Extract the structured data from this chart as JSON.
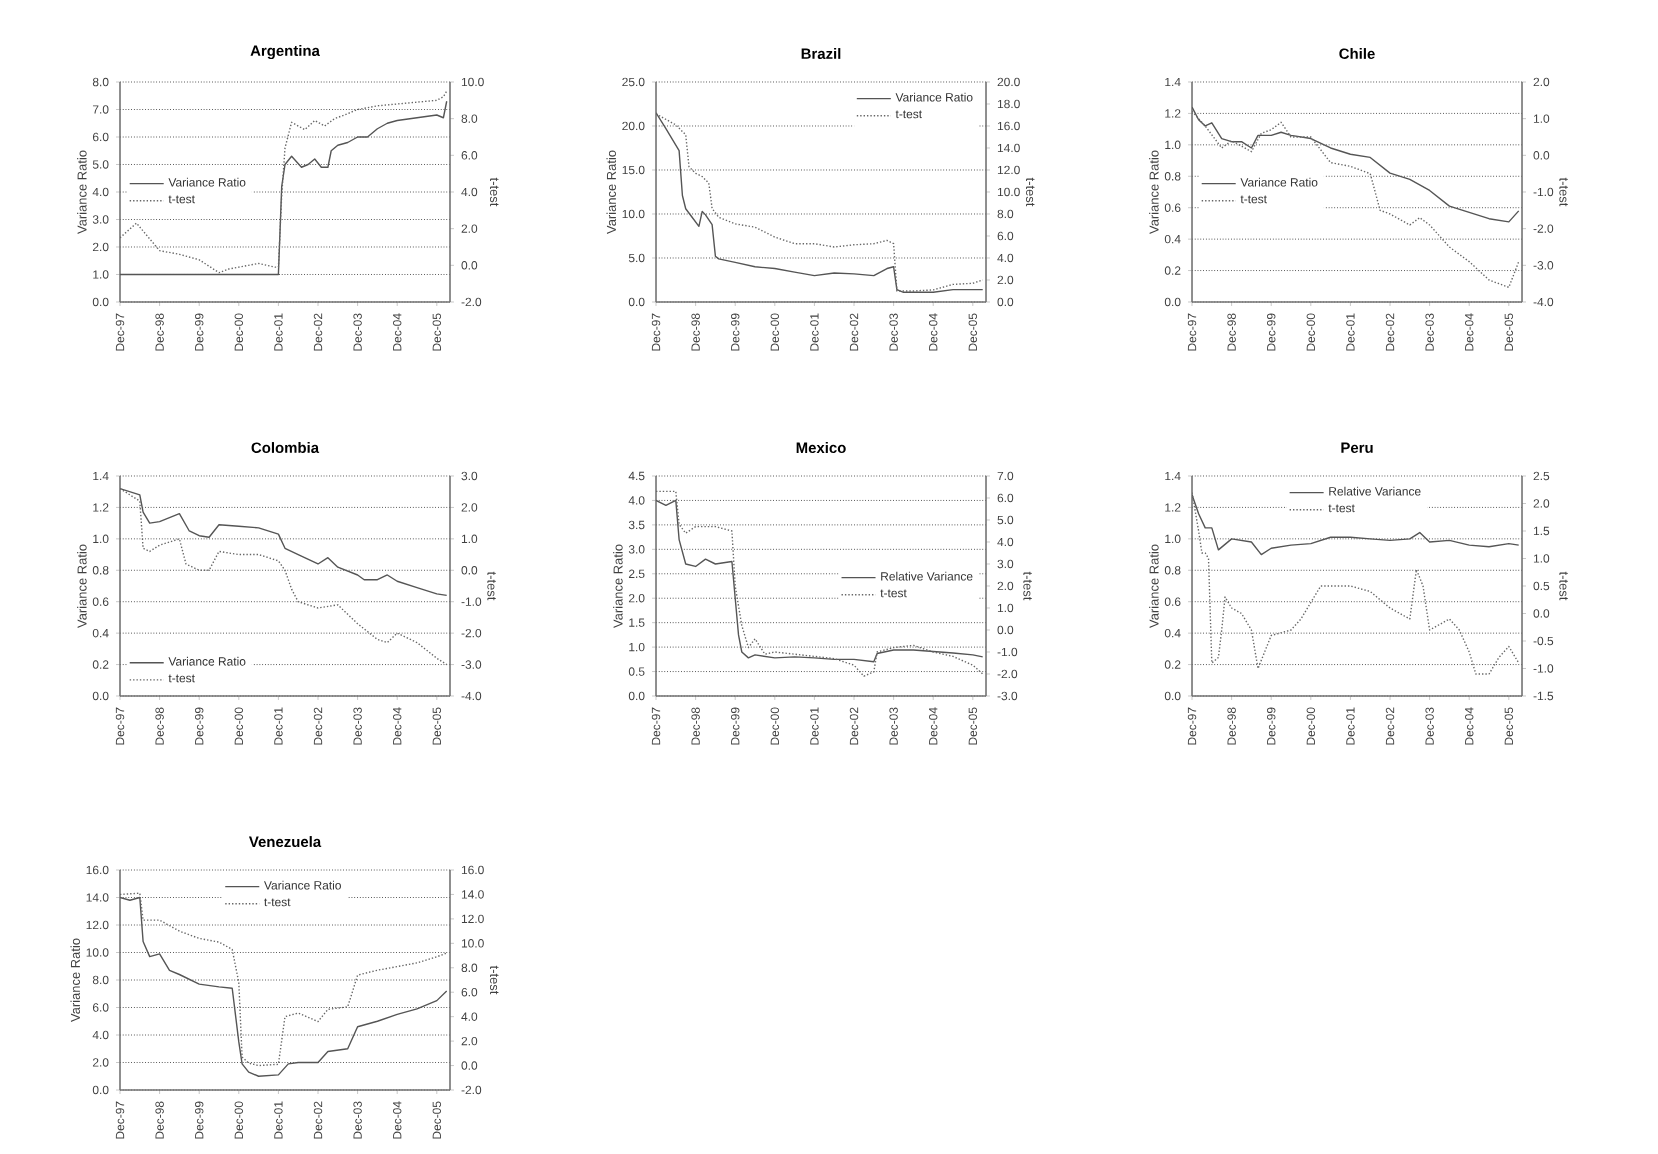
{
  "chart_data": [
    {
      "type": "line",
      "title": "Argentina",
      "ylabel": "Variance Ratio",
      "y2label": "t-test",
      "grid": "y",
      "legend": "left",
      "xlim": [
        "1997-12",
        "2006-04"
      ],
      "xticks": [
        {
          "value": "1997-12",
          "label": "Dec-97"
        },
        {
          "value": "1998-12",
          "label": "Dec-98"
        },
        {
          "value": "1999-12",
          "label": "Dec-99"
        },
        {
          "value": "2000-12",
          "label": "Dec-00"
        },
        {
          "value": "2001-12",
          "label": "Dec-01"
        },
        {
          "value": "2002-12",
          "label": "Dec-02"
        },
        {
          "value": "2003-12",
          "label": "Dec-03"
        },
        {
          "value": "2004-12",
          "label": "Dec-04"
        },
        {
          "value": "2005-12",
          "label": "Dec-05"
        }
      ],
      "ylim": [
        0,
        8
      ],
      "yticks": [
        {
          "value": 0,
          "label": "0.0"
        },
        {
          "value": 1,
          "label": "1.0"
        },
        {
          "value": 2,
          "label": "2.0"
        },
        {
          "value": 3,
          "label": "3.0"
        },
        {
          "value": 4,
          "label": "4.0"
        },
        {
          "value": 5,
          "label": "5.0"
        },
        {
          "value": 6,
          "label": "6.0"
        },
        {
          "value": 7,
          "label": "7.0"
        },
        {
          "value": 8,
          "label": "8.0"
        }
      ],
      "y2lim": [
        -2,
        10
      ],
      "y2ticks": [
        {
          "value": -2,
          "label": "-2.0"
        },
        {
          "value": 0,
          "label": "0.0"
        },
        {
          "value": 2,
          "label": "2.0"
        },
        {
          "value": 4,
          "label": "4.0"
        },
        {
          "value": 6,
          "label": "6.0"
        },
        {
          "value": 8,
          "label": "8.0"
        },
        {
          "value": 10,
          "label": "10.0"
        }
      ],
      "series": [
        {
          "name": "Variance Ratio",
          "color": "#555555",
          "line_style": "solid",
          "x": [
            "1997-12",
            "2001-11",
            "2001-12",
            "2002-01",
            "2002-02",
            "2002-04",
            "2002-07",
            "2002-09",
            "2002-11",
            "2003-01",
            "2003-03",
            "2003-04",
            "2003-06",
            "2003-09",
            "2003-12",
            "2004-03",
            "2004-06",
            "2004-09",
            "2004-12",
            "2005-06",
            "2005-12",
            "2006-02",
            "2006-03"
          ],
          "values": [
            1.0,
            1.0,
            1.0,
            4.2,
            5.0,
            5.3,
            4.9,
            5.0,
            5.2,
            4.9,
            4.9,
            5.5,
            5.7,
            5.8,
            6.0,
            6.0,
            6.3,
            6.5,
            6.6,
            6.7,
            6.8,
            6.7,
            7.3
          ]
        },
        {
          "name": "t-test",
          "color": "#666666",
          "line_style": "dotted",
          "axis": "y2",
          "x": [
            "1997-12",
            "1998-05",
            "1998-12",
            "1999-06",
            "1999-12",
            "2000-06",
            "2000-09",
            "2000-12",
            "2001-06",
            "2001-11",
            "2001-12",
            "2002-01",
            "2002-02",
            "2002-04",
            "2002-08",
            "2002-11",
            "2003-02",
            "2003-05",
            "2003-08",
            "2003-12",
            "2004-06",
            "2004-12",
            "2005-06",
            "2005-12",
            "2006-02",
            "2006-03"
          ],
          "values": [
            1.5,
            2.3,
            0.8,
            0.6,
            0.3,
            -0.4,
            -0.2,
            -0.1,
            0.1,
            -0.1,
            -0.1,
            3.8,
            6.4,
            7.8,
            7.4,
            7.9,
            7.6,
            8.0,
            8.2,
            8.5,
            8.7,
            8.8,
            8.9,
            9.0,
            9.2,
            9.5
          ]
        }
      ]
    },
    {
      "type": "line",
      "title": "Brazil",
      "ylabel": "Variance Ratio",
      "y2label": "t-test",
      "grid": "y",
      "legend": "top right",
      "xlim": [
        "1997-12",
        "2006-04"
      ],
      "xticks": [
        {
          "value": "1997-12",
          "label": "Dec-97"
        },
        {
          "value": "1998-12",
          "label": "Dec-98"
        },
        {
          "value": "1999-12",
          "label": "Dec-99"
        },
        {
          "value": "2000-12",
          "label": "Dec-00"
        },
        {
          "value": "2001-12",
          "label": "Dec-01"
        },
        {
          "value": "2002-12",
          "label": "Dec-02"
        },
        {
          "value": "2003-12",
          "label": "Dec-03"
        },
        {
          "value": "2004-12",
          "label": "Dec-04"
        },
        {
          "value": "2005-12",
          "label": "Dec-05"
        }
      ],
      "ylim": [
        0,
        25
      ],
      "yticks": [
        {
          "value": 0,
          "label": "0.0"
        },
        {
          "value": 5,
          "label": "5.0"
        },
        {
          "value": 10,
          "label": "10.0"
        },
        {
          "value": 15,
          "label": "15.0"
        },
        {
          "value": 20,
          "label": "20.0"
        },
        {
          "value": 25,
          "label": "25.0"
        }
      ],
      "y2lim": [
        0,
        20
      ],
      "y2ticks": [
        {
          "value": 0,
          "label": "0.0"
        },
        {
          "value": 2,
          "label": "2.0"
        },
        {
          "value": 4,
          "label": "4.0"
        },
        {
          "value": 6,
          "label": "6.0"
        },
        {
          "value": 8,
          "label": "8.0"
        },
        {
          "value": 10,
          "label": "10.0"
        },
        {
          "value": 12,
          "label": "12.0"
        },
        {
          "value": 14,
          "label": "14.0"
        },
        {
          "value": 16,
          "label": "16.0"
        },
        {
          "value": 18,
          "label": "18.0"
        },
        {
          "value": 20,
          "label": "20.0"
        }
      ],
      "series": [
        {
          "name": "Variance Ratio",
          "color": "#555555",
          "line_style": "solid",
          "x": [
            "1997-12",
            "1998-03",
            "1998-07",
            "1998-08",
            "1998-09",
            "1998-11",
            "1999-01",
            "1999-02",
            "1999-03",
            "1999-05",
            "1999-06",
            "1999-07",
            "1999-12",
            "2000-06",
            "2000-12",
            "2001-06",
            "2001-12",
            "2002-06",
            "2002-12",
            "2003-06",
            "2003-10",
            "2003-12",
            "2004-01",
            "2004-03",
            "2004-12",
            "2005-06",
            "2006-03"
          ],
          "values": [
            21.5,
            19.7,
            17.2,
            12.1,
            10.6,
            9.6,
            8.6,
            10.3,
            9.9,
            8.8,
            5.2,
            4.9,
            4.5,
            4.0,
            3.8,
            3.4,
            3.0,
            3.3,
            3.2,
            3.0,
            3.8,
            4.0,
            1.4,
            1.1,
            1.1,
            1.4,
            1.4
          ]
        },
        {
          "name": "t-test",
          "color": "#666666",
          "line_style": "dotted",
          "axis": "y2",
          "x": [
            "1997-12",
            "1998-06",
            "1998-09",
            "1998-10",
            "1998-12",
            "1999-02",
            "1999-04",
            "1999-05",
            "1999-07",
            "1999-12",
            "2000-06",
            "2000-12",
            "2001-06",
            "2001-12",
            "2002-06",
            "2002-12",
            "2003-06",
            "2003-10",
            "2003-12",
            "2004-01",
            "2004-06",
            "2004-12",
            "2005-06",
            "2005-12",
            "2006-03"
          ],
          "values": [
            17.1,
            16.1,
            15.2,
            12.3,
            11.7,
            11.4,
            10.8,
            8.5,
            7.7,
            7.1,
            6.8,
            5.9,
            5.3,
            5.3,
            5.0,
            5.2,
            5.3,
            5.6,
            5.3,
            1.0,
            1.0,
            1.1,
            1.6,
            1.7,
            2.0
          ]
        }
      ]
    },
    {
      "type": "line",
      "title": "Chile",
      "ylabel": "Variance Ratio",
      "y2label": "t-test",
      "grid": "y",
      "legend": "left",
      "xlim": [
        "1997-12",
        "2006-04"
      ],
      "xticks": [
        {
          "value": "1997-12",
          "label": "Dec-97"
        },
        {
          "value": "1998-12",
          "label": "Dec-98"
        },
        {
          "value": "1999-12",
          "label": "Dec-99"
        },
        {
          "value": "2000-12",
          "label": "Dec-00"
        },
        {
          "value": "2001-12",
          "label": "Dec-01"
        },
        {
          "value": "2002-12",
          "label": "Dec-02"
        },
        {
          "value": "2003-12",
          "label": "Dec-03"
        },
        {
          "value": "2004-12",
          "label": "Dec-04"
        },
        {
          "value": "2005-12",
          "label": "Dec-05"
        }
      ],
      "ylim": [
        0,
        1.4
      ],
      "yticks": [
        {
          "value": 0,
          "label": "0.0"
        },
        {
          "value": 0.2,
          "label": "0.2"
        },
        {
          "value": 0.4,
          "label": "0.4"
        },
        {
          "value": 0.6,
          "label": "0.6"
        },
        {
          "value": 0.8,
          "label": "0.8"
        },
        {
          "value": 1.0,
          "label": "1.0"
        },
        {
          "value": 1.2,
          "label": "1.2"
        },
        {
          "value": 1.4,
          "label": "1.4"
        }
      ],
      "y2lim": [
        -4,
        2
      ],
      "y2ticks": [
        {
          "value": -4,
          "label": "-4.0"
        },
        {
          "value": -3,
          "label": "-3.0"
        },
        {
          "value": -2,
          "label": "-2.0"
        },
        {
          "value": -1,
          "label": "-1.0"
        },
        {
          "value": 0,
          "label": "0.0"
        },
        {
          "value": 1,
          "label": "1.0"
        },
        {
          "value": 2,
          "label": "2.0"
        }
      ],
      "series": [
        {
          "name": "Variance Ratio",
          "color": "#555555",
          "line_style": "solid",
          "x": [
            "1997-12",
            "1998-02",
            "1998-04",
            "1998-06",
            "1998-09",
            "1998-12",
            "1999-03",
            "1999-06",
            "1999-08",
            "1999-12",
            "2000-03",
            "2000-06",
            "2000-12",
            "2001-06",
            "2001-12",
            "2002-06",
            "2002-12",
            "2003-06",
            "2003-12",
            "2004-06",
            "2004-12",
            "2005-06",
            "2005-12",
            "2006-03"
          ],
          "values": [
            1.24,
            1.16,
            1.12,
            1.14,
            1.04,
            1.02,
            1.02,
            0.98,
            1.06,
            1.06,
            1.08,
            1.06,
            1.04,
            0.98,
            0.94,
            0.92,
            0.82,
            0.78,
            0.71,
            0.61,
            0.57,
            0.53,
            0.51,
            0.58
          ]
        },
        {
          "name": "t-test",
          "color": "#666666",
          "line_style": "dotted",
          "axis": "y2",
          "x": [
            "1997-12",
            "1998-04",
            "1998-09",
            "1998-12",
            "1999-06",
            "1999-09",
            "1999-12",
            "2000-03",
            "2000-06",
            "2000-12",
            "2001-06",
            "2001-12",
            "2002-06",
            "2002-09",
            "2002-12",
            "2003-06",
            "2003-09",
            "2003-12",
            "2004-06",
            "2004-12",
            "2005-06",
            "2005-12",
            "2006-03"
          ],
          "values": [
            1.2,
            0.8,
            0.2,
            0.4,
            0.1,
            0.6,
            0.7,
            0.9,
            0.5,
            0.5,
            -0.2,
            -0.3,
            -0.5,
            -1.5,
            -1.6,
            -1.9,
            -1.7,
            -1.9,
            -2.5,
            -2.9,
            -3.4,
            -3.6,
            -2.9
          ]
        }
      ]
    },
    {
      "type": "line",
      "title": "Colombia",
      "ylabel": "Variance Ratio",
      "y2label": "t-test",
      "grid": "y",
      "legend": "bottom left",
      "xlim": [
        "1997-12",
        "2006-04"
      ],
      "xticks": [
        {
          "value": "1997-12",
          "label": "Dec-97"
        },
        {
          "value": "1998-12",
          "label": "Dec-98"
        },
        {
          "value": "1999-12",
          "label": "Dec-99"
        },
        {
          "value": "2000-12",
          "label": "Dec-00"
        },
        {
          "value": "2001-12",
          "label": "Dec-01"
        },
        {
          "value": "2002-12",
          "label": "Dec-02"
        },
        {
          "value": "2003-12",
          "label": "Dec-03"
        },
        {
          "value": "2004-12",
          "label": "Dec-04"
        },
        {
          "value": "2005-12",
          "label": "Dec-05"
        }
      ],
      "ylim": [
        0,
        1.4
      ],
      "yticks": [
        {
          "value": 0,
          "label": "0.0"
        },
        {
          "value": 0.2,
          "label": "0.2"
        },
        {
          "value": 0.4,
          "label": "0.4"
        },
        {
          "value": 0.6,
          "label": "0.6"
        },
        {
          "value": 0.8,
          "label": "0.8"
        },
        {
          "value": 1.0,
          "label": "1.0"
        },
        {
          "value": 1.2,
          "label": "1.2"
        },
        {
          "value": 1.4,
          "label": "1.4"
        }
      ],
      "y2lim": [
        -4,
        3
      ],
      "y2ticks": [
        {
          "value": -4,
          "label": "-4.0"
        },
        {
          "value": -3,
          "label": "-3.0"
        },
        {
          "value": -2,
          "label": "-2.0"
        },
        {
          "value": -1,
          "label": "-1.0"
        },
        {
          "value": 0,
          "label": "0.0"
        },
        {
          "value": 1,
          "label": "1.0"
        },
        {
          "value": 2,
          "label": "2.0"
        },
        {
          "value": 3,
          "label": "3.0"
        }
      ],
      "series": [
        {
          "name": "Variance Ratio",
          "color": "#555555",
          "line_style": "solid",
          "x": [
            "1997-12",
            "1998-03",
            "1998-06",
            "1998-07",
            "1998-09",
            "1998-12",
            "1999-06",
            "1999-09",
            "1999-12",
            "2000-03",
            "2000-06",
            "2000-12",
            "2001-06",
            "2001-12",
            "2002-02",
            "2002-06",
            "2002-12",
            "2003-03",
            "2003-06",
            "2003-12",
            "2004-02",
            "2004-06",
            "2004-09",
            "2004-12",
            "2005-06",
            "2005-12",
            "2006-03"
          ],
          "values": [
            1.32,
            1.3,
            1.28,
            1.17,
            1.1,
            1.11,
            1.16,
            1.05,
            1.02,
            1.01,
            1.09,
            1.08,
            1.07,
            1.03,
            0.94,
            0.9,
            0.84,
            0.88,
            0.82,
            0.77,
            0.74,
            0.74,
            0.77,
            0.73,
            0.69,
            0.65,
            0.64
          ]
        },
        {
          "name": "t-test",
          "color": "#666666",
          "line_style": "dotted",
          "axis": "y2",
          "x": [
            "1997-12",
            "1998-06",
            "1998-07",
            "1998-09",
            "1998-12",
            "1999-06",
            "1999-08",
            "1999-12",
            "2000-03",
            "2000-06",
            "2000-12",
            "2001-06",
            "2001-12",
            "2002-02",
            "2002-04",
            "2002-06",
            "2002-12",
            "2003-06",
            "2003-09",
            "2003-12",
            "2004-06",
            "2004-09",
            "2004-12",
            "2005-06",
            "2005-12",
            "2006-03"
          ],
          "values": [
            2.6,
            2.2,
            0.7,
            0.6,
            0.8,
            1.0,
            0.2,
            0.0,
            0.0,
            0.6,
            0.5,
            0.5,
            0.3,
            0.0,
            -0.6,
            -1.0,
            -1.2,
            -1.1,
            -1.4,
            -1.7,
            -2.2,
            -2.3,
            -2.0,
            -2.3,
            -2.8,
            -3.0
          ]
        }
      ]
    },
    {
      "type": "line",
      "title": "Mexico",
      "ylabel": "Variance Ratio",
      "y2label": "t-test",
      "grid": "y",
      "legend": "right",
      "xlim": [
        "1997-12",
        "2006-04"
      ],
      "xticks": [
        {
          "value": "1997-12",
          "label": "Dec-97"
        },
        {
          "value": "1998-12",
          "label": "Dec-98"
        },
        {
          "value": "1999-12",
          "label": "Dec-99"
        },
        {
          "value": "2000-12",
          "label": "Dec-00"
        },
        {
          "value": "2001-12",
          "label": "Dec-01"
        },
        {
          "value": "2002-12",
          "label": "Dec-02"
        },
        {
          "value": "2003-12",
          "label": "Dec-03"
        },
        {
          "value": "2004-12",
          "label": "Dec-04"
        },
        {
          "value": "2005-12",
          "label": "Dec-05"
        }
      ],
      "ylim": [
        0,
        4.5
      ],
      "yticks": [
        {
          "value": 0,
          "label": "0.0"
        },
        {
          "value": 0.5,
          "label": "0.5"
        },
        {
          "value": 1.0,
          "label": "1.0"
        },
        {
          "value": 1.5,
          "label": "1.5"
        },
        {
          "value": 2.0,
          "label": "2.0"
        },
        {
          "value": 2.5,
          "label": "2.5"
        },
        {
          "value": 3.0,
          "label": "3.0"
        },
        {
          "value": 3.5,
          "label": "3.5"
        },
        {
          "value": 4.0,
          "label": "4.0"
        },
        {
          "value": 4.5,
          "label": "4.5"
        }
      ],
      "y2lim": [
        -3,
        7
      ],
      "y2ticks": [
        {
          "value": -3,
          "label": "-3.0"
        },
        {
          "value": -2,
          "label": "-2.0"
        },
        {
          "value": -1,
          "label": "-1.0"
        },
        {
          "value": 0,
          "label": "0.0"
        },
        {
          "value": 1,
          "label": "1.0"
        },
        {
          "value": 2,
          "label": "2.0"
        },
        {
          "value": 3,
          "label": "3.0"
        },
        {
          "value": 4,
          "label": "4.0"
        },
        {
          "value": 5,
          "label": "5.0"
        },
        {
          "value": 6,
          "label": "6.0"
        },
        {
          "value": 7,
          "label": "7.0"
        }
      ],
      "series": [
        {
          "name": "Relative Variance",
          "color": "#555555",
          "line_style": "solid",
          "x": [
            "1997-12",
            "1998-03",
            "1998-06",
            "1998-07",
            "1998-09",
            "1998-12",
            "1999-03",
            "1999-06",
            "1999-11",
            "1999-12",
            "2000-01",
            "2000-02",
            "2000-04",
            "2000-06",
            "2000-12",
            "2001-06",
            "2001-12",
            "2002-06",
            "2002-12",
            "2003-06",
            "2003-07",
            "2003-12",
            "2004-06",
            "2004-12",
            "2005-06",
            "2005-12",
            "2006-03"
          ],
          "values": [
            4.0,
            3.9,
            4.0,
            3.2,
            2.7,
            2.65,
            2.8,
            2.7,
            2.75,
            2.0,
            1.25,
            0.9,
            0.78,
            0.84,
            0.78,
            0.8,
            0.78,
            0.75,
            0.75,
            0.7,
            0.87,
            0.94,
            0.94,
            0.91,
            0.88,
            0.84,
            0.8
          ]
        },
        {
          "name": "t-test",
          "color": "#666666",
          "line_style": "dotted",
          "axis": "y2",
          "x": [
            "1997-12",
            "1998-06",
            "1998-07",
            "1998-09",
            "1998-12",
            "1999-06",
            "1999-11",
            "1999-12",
            "2000-02",
            "2000-04",
            "2000-06",
            "2000-09",
            "2000-12",
            "2001-06",
            "2001-12",
            "2002-06",
            "2002-12",
            "2003-03",
            "2003-06",
            "2003-07",
            "2003-12",
            "2004-06",
            "2004-12",
            "2005-06",
            "2005-12",
            "2006-03"
          ],
          "values": [
            6.3,
            6.3,
            4.8,
            4.4,
            4.7,
            4.7,
            4.5,
            2.0,
            0.2,
            -0.8,
            -0.4,
            -1.1,
            -1.0,
            -1.1,
            -1.2,
            -1.3,
            -1.6,
            -2.1,
            -1.9,
            -1.0,
            -0.8,
            -0.7,
            -1.0,
            -1.2,
            -1.6,
            -2.0
          ]
        }
      ]
    },
    {
      "type": "line",
      "title": "Peru",
      "ylabel": "Variance Ratio",
      "y2label": "t-test",
      "grid": "y",
      "legend": "top",
      "xlim": [
        "1997-12",
        "2006-04"
      ],
      "xticks": [
        {
          "value": "1997-12",
          "label": "Dec-97"
        },
        {
          "value": "1998-12",
          "label": "Dec-98"
        },
        {
          "value": "1999-12",
          "label": "Dec-99"
        },
        {
          "value": "2000-12",
          "label": "Dec-00"
        },
        {
          "value": "2001-12",
          "label": "Dec-01"
        },
        {
          "value": "2002-12",
          "label": "Dec-02"
        },
        {
          "value": "2003-12",
          "label": "Dec-03"
        },
        {
          "value": "2004-12",
          "label": "Dec-04"
        },
        {
          "value": "2005-12",
          "label": "Dec-05"
        }
      ],
      "ylim": [
        0,
        1.4
      ],
      "yticks": [
        {
          "value": 0,
          "label": "0.0"
        },
        {
          "value": 0.2,
          "label": "0.2"
        },
        {
          "value": 0.4,
          "label": "0.4"
        },
        {
          "value": 0.6,
          "label": "0.6"
        },
        {
          "value": 0.8,
          "label": "0.8"
        },
        {
          "value": 1.0,
          "label": "1.0"
        },
        {
          "value": 1.2,
          "label": "1.2"
        },
        {
          "value": 1.4,
          "label": "1.4"
        }
      ],
      "y2lim": [
        -1.5,
        2.5
      ],
      "y2ticks": [
        {
          "value": -1.5,
          "label": "-1.5"
        },
        {
          "value": -1.0,
          "label": "-1.0"
        },
        {
          "value": -0.5,
          "label": "-0.5"
        },
        {
          "value": 0,
          "label": "0.0"
        },
        {
          "value": 0.5,
          "label": "0.5"
        },
        {
          "value": 1.0,
          "label": "1.0"
        },
        {
          "value": 1.5,
          "label": "1.5"
        },
        {
          "value": 2.0,
          "label": "2.0"
        },
        {
          "value": 2.5,
          "label": "2.5"
        }
      ],
      "series": [
        {
          "name": "Relative Variance",
          "color": "#555555",
          "line_style": "solid",
          "x": [
            "1997-12",
            "1998-02",
            "1998-04",
            "1998-06",
            "1998-08",
            "1998-12",
            "1999-06",
            "1999-09",
            "1999-12",
            "2000-06",
            "2000-12",
            "2001-06",
            "2001-12",
            "2002-06",
            "2002-12",
            "2003-06",
            "2003-09",
            "2003-12",
            "2004-06",
            "2004-12",
            "2005-06",
            "2005-12",
            "2006-03"
          ],
          "values": [
            1.28,
            1.16,
            1.07,
            1.07,
            0.93,
            1.0,
            0.98,
            0.9,
            0.94,
            0.96,
            0.97,
            1.01,
            1.01,
            1.0,
            0.99,
            1.0,
            1.04,
            0.98,
            0.99,
            0.96,
            0.95,
            0.97,
            0.96
          ]
        },
        {
          "name": "t-test",
          "color": "#666666",
          "line_style": "dotted",
          "axis": "y2",
          "x": [
            "1997-12",
            "1998-02",
            "1998-03",
            "1998-04",
            "1998-05",
            "1998-06",
            "1998-08",
            "1998-09",
            "1998-10",
            "1998-12",
            "1999-03",
            "1999-06",
            "1999-08",
            "1999-10",
            "1999-12",
            "2000-06",
            "2000-09",
            "2000-12",
            "2001-03",
            "2001-06",
            "2001-12",
            "2002-06",
            "2002-12",
            "2003-06",
            "2003-08",
            "2003-10",
            "2003-12",
            "2004-06",
            "2004-09",
            "2004-12",
            "2005-02",
            "2005-06",
            "2005-09",
            "2005-12",
            "2006-03"
          ],
          "values": [
            2.2,
            1.5,
            1.1,
            1.1,
            1.0,
            -0.9,
            -0.8,
            -0.3,
            0.3,
            0.1,
            0.0,
            -0.3,
            -1.0,
            -0.7,
            -0.4,
            -0.3,
            -0.1,
            0.2,
            0.5,
            0.5,
            0.5,
            0.4,
            0.1,
            -0.1,
            0.8,
            0.5,
            -0.3,
            -0.1,
            -0.3,
            -0.7,
            -1.1,
            -1.1,
            -0.8,
            -0.6,
            -0.9
          ]
        }
      ]
    },
    {
      "type": "line",
      "title": "Venezuela",
      "ylabel": "Variance Ratio",
      "y2label": "t-test",
      "grid": "y",
      "legend": "top",
      "xlim": [
        "1997-12",
        "2006-04"
      ],
      "xticks": [
        {
          "value": "1997-12",
          "label": "Dec-97"
        },
        {
          "value": "1998-12",
          "label": "Dec-98"
        },
        {
          "value": "1999-12",
          "label": "Dec-99"
        },
        {
          "value": "2000-12",
          "label": "Dec-00"
        },
        {
          "value": "2001-12",
          "label": "Dec-01"
        },
        {
          "value": "2002-12",
          "label": "Dec-02"
        },
        {
          "value": "2003-12",
          "label": "Dec-03"
        },
        {
          "value": "2004-12",
          "label": "Dec-04"
        },
        {
          "value": "2005-12",
          "label": "Dec-05"
        }
      ],
      "ylim": [
        0,
        16
      ],
      "yticks": [
        {
          "value": 0,
          "label": "0.0"
        },
        {
          "value": 2,
          "label": "2.0"
        },
        {
          "value": 4,
          "label": "4.0"
        },
        {
          "value": 6,
          "label": "6.0"
        },
        {
          "value": 8,
          "label": "8.0"
        },
        {
          "value": 10,
          "label": "10.0"
        },
        {
          "value": 12,
          "label": "12.0"
        },
        {
          "value": 14,
          "label": "14.0"
        },
        {
          "value": 16,
          "label": "16.0"
        }
      ],
      "y2lim": [
        -2,
        16
      ],
      "y2ticks": [
        {
          "value": -2,
          "label": "-2.0"
        },
        {
          "value": 0,
          "label": "0.0"
        },
        {
          "value": 2,
          "label": "2.0"
        },
        {
          "value": 4,
          "label": "4.0"
        },
        {
          "value": 6,
          "label": "6.0"
        },
        {
          "value": 8,
          "label": "8.0"
        },
        {
          "value": 10,
          "label": "10.0"
        },
        {
          "value": 12,
          "label": "12.0"
        },
        {
          "value": 14,
          "label": "14.0"
        },
        {
          "value": 16,
          "label": "16.0"
        }
      ],
      "series": [
        {
          "name": "Variance Ratio",
          "color": "#555555",
          "line_style": "solid",
          "x": [
            "1997-12",
            "1998-03",
            "1998-06",
            "1998-07",
            "1998-09",
            "1998-12",
            "1999-03",
            "1999-06",
            "1999-12",
            "2000-06",
            "2000-10",
            "2000-12",
            "2001-01",
            "2001-03",
            "2001-06",
            "2001-12",
            "2002-03",
            "2002-06",
            "2002-12",
            "2003-03",
            "2003-09",
            "2003-12",
            "2004-06",
            "2004-12",
            "2005-06",
            "2005-12",
            "2006-03"
          ],
          "values": [
            14.0,
            13.8,
            14.0,
            10.8,
            9.7,
            9.9,
            8.7,
            8.4,
            7.7,
            7.5,
            7.4,
            3.5,
            1.9,
            1.3,
            1.0,
            1.1,
            1.9,
            2.0,
            2.0,
            2.8,
            3.0,
            4.6,
            5.0,
            5.5,
            5.9,
            6.5,
            7.2
          ]
        },
        {
          "name": "t-test",
          "color": "#666666",
          "line_style": "dotted",
          "axis": "y2",
          "x": [
            "1997-12",
            "1998-06",
            "1998-07",
            "1998-12",
            "1999-06",
            "1999-12",
            "2000-06",
            "2000-10",
            "2000-12",
            "2001-01",
            "2001-03",
            "2001-06",
            "2001-12",
            "2002-02",
            "2002-06",
            "2002-12",
            "2003-03",
            "2003-09",
            "2003-12",
            "2004-06",
            "2004-12",
            "2005-06",
            "2005-12",
            "2006-03"
          ],
          "values": [
            14.0,
            14.1,
            11.9,
            11.9,
            11.0,
            10.4,
            10.1,
            9.5,
            6.8,
            0.7,
            0.2,
            0.0,
            0.1,
            4.0,
            4.3,
            3.6,
            4.6,
            4.8,
            7.4,
            7.8,
            8.1,
            8.4,
            8.9,
            9.2
          ]
        }
      ]
    }
  ]
}
